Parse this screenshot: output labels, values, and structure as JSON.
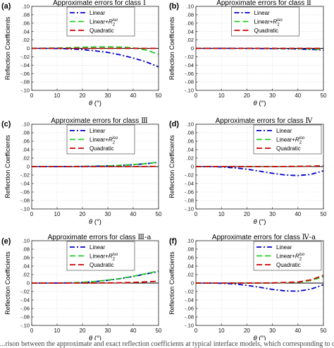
{
  "caption": "...rison between the approximate and exact reflection coefficients at typical interface models, which corresponding to different AVO cla...",
  "chart_data": [
    {
      "panel": "(a)",
      "type": "line",
      "title": "Approximate errors for class",
      "title_suffix": "Ⅰ",
      "xlabel": "θ (°)",
      "ylabel": "Reflection Coefficients",
      "xlim": [
        0,
        50
      ],
      "ylim": [
        -0.1,
        0.1
      ],
      "xticks": [
        0,
        10,
        20,
        30,
        40,
        50
      ],
      "yticks": [
        -0.1,
        -0.08,
        -0.06,
        -0.04,
        -0.02,
        0,
        0.02,
        0.04,
        0.06,
        0.08,
        0.1
      ],
      "grid": true,
      "legend_position": "top-center",
      "series": [
        {
          "name": "Linear",
          "color": "#0000cc",
          "dash": "7,3,2,3",
          "x": [
            0,
            5,
            10,
            15,
            20,
            25,
            30,
            35,
            40,
            45,
            50
          ],
          "y": [
            0,
            0,
            -0.0004,
            -0.0013,
            -0.003,
            -0.0058,
            -0.0098,
            -0.0155,
            -0.023,
            -0.032,
            -0.044
          ]
        },
        {
          "name": "Linear+R2iso",
          "color": "#22cc22",
          "dash": "8,4",
          "x": [
            0,
            5,
            10,
            15,
            20,
            25,
            30,
            35,
            40,
            45,
            50
          ],
          "y": [
            0,
            0.0003,
            0.0008,
            0.0015,
            0.0025,
            0.0033,
            0.0035,
            0.003,
            0.0012,
            -0.004,
            -0.014
          ]
        },
        {
          "name": "Quadratic",
          "color": "#cc0000",
          "dash": "8,4",
          "x": [
            0,
            5,
            10,
            15,
            20,
            25,
            30,
            35,
            40,
            45,
            50
          ],
          "y": [
            0,
            0,
            0,
            0,
            0,
            0,
            0,
            0,
            0,
            0,
            0
          ]
        }
      ]
    },
    {
      "panel": "(b)",
      "type": "line",
      "title": "Approximate errors for class",
      "title_suffix": "Ⅱ",
      "xlabel": "θ (°)",
      "ylabel": "Reflection Coefficients",
      "xlim": [
        0,
        50
      ],
      "ylim": [
        -0.1,
        0.1
      ],
      "xticks": [
        0,
        10,
        20,
        30,
        40,
        50
      ],
      "yticks": [
        -0.1,
        -0.08,
        -0.06,
        -0.04,
        -0.02,
        0,
        0.02,
        0.04,
        0.06,
        0.08,
        0.1
      ],
      "grid": true,
      "legend_position": "top-center",
      "series": [
        {
          "name": "Linear",
          "color": "#0000cc",
          "dash": "7,3,2,3",
          "x": [
            0,
            10,
            20,
            30,
            40,
            45,
            50
          ],
          "y": [
            0,
            0,
            -0.0002,
            -0.0006,
            -0.0015,
            -0.0025,
            -0.004
          ]
        },
        {
          "name": "Linear+R2iso",
          "color": "#22cc22",
          "dash": "8,4",
          "x": [
            0,
            10,
            20,
            30,
            40,
            45,
            50
          ],
          "y": [
            0,
            0,
            -0.0001,
            -0.0003,
            -0.0008,
            -0.0015,
            -0.0025
          ]
        },
        {
          "name": "Quadratic",
          "color": "#cc0000",
          "dash": "8,4",
          "x": [
            0,
            10,
            20,
            30,
            40,
            45,
            50
          ],
          "y": [
            0,
            0,
            0,
            0,
            0,
            0,
            0
          ]
        }
      ]
    },
    {
      "panel": "(c)",
      "type": "line",
      "title": "Approximate errors for class",
      "title_suffix": "Ⅲ",
      "xlabel": "θ (°)",
      "ylabel": "Reflection Coefficients",
      "xlim": [
        0,
        50
      ],
      "ylim": [
        -0.1,
        0.1
      ],
      "xticks": [
        0,
        10,
        20,
        30,
        40,
        50
      ],
      "yticks": [
        -0.1,
        -0.08,
        -0.06,
        -0.04,
        -0.02,
        0,
        0.02,
        0.04,
        0.06,
        0.08,
        0.1
      ],
      "grid": true,
      "legend_position": "top-center",
      "series": [
        {
          "name": "Linear",
          "color": "#0000cc",
          "dash": "7,3,2,3",
          "x": [
            0,
            10,
            20,
            30,
            35,
            40,
            45,
            50
          ],
          "y": [
            0,
            0,
            0.0003,
            0.0015,
            0.0028,
            0.0045,
            0.0068,
            0.01
          ]
        },
        {
          "name": "Linear+R2iso",
          "color": "#22cc22",
          "dash": "8,4",
          "x": [
            0,
            10,
            20,
            30,
            35,
            40,
            45,
            50
          ],
          "y": [
            0,
            0,
            0.0004,
            0.0017,
            0.003,
            0.0048,
            0.0072,
            0.0105
          ]
        },
        {
          "name": "Quadratic",
          "color": "#cc0000",
          "dash": "8,4",
          "x": [
            0,
            10,
            20,
            30,
            35,
            40,
            45,
            50
          ],
          "y": [
            0,
            0,
            0,
            0,
            0,
            0,
            0.0002,
            0.0005
          ]
        }
      ]
    },
    {
      "panel": "(d)",
      "type": "line",
      "title": "Approximate errors for class",
      "title_suffix": "Ⅳ",
      "xlabel": "θ (°)",
      "ylabel": "Reflection Coefficients",
      "xlim": [
        0,
        50
      ],
      "ylim": [
        -0.1,
        0.1
      ],
      "xticks": [
        0,
        10,
        20,
        30,
        40,
        50
      ],
      "yticks": [
        -0.1,
        -0.08,
        -0.06,
        -0.04,
        -0.02,
        0,
        0.02,
        0.04,
        0.06,
        0.08,
        0.1
      ],
      "grid": true,
      "legend_position": "top-right",
      "series": [
        {
          "name": "Linear",
          "color": "#0000cc",
          "dash": "7,3,2,3",
          "x": [
            0,
            5,
            10,
            15,
            20,
            25,
            30,
            35,
            40,
            45,
            50
          ],
          "y": [
            0,
            0,
            -0.0008,
            -0.0028,
            -0.0062,
            -0.0108,
            -0.0158,
            -0.0198,
            -0.0212,
            -0.0185,
            -0.01
          ]
        },
        {
          "name": "Linear+R2iso",
          "color": "#22cc22",
          "dash": "8,4",
          "x": [
            0,
            10,
            20,
            30,
            40,
            45,
            50
          ],
          "y": [
            0,
            0,
            0,
            0,
            0.0005,
            0.001,
            0.002
          ]
        },
        {
          "name": "Quadratic",
          "color": "#cc0000",
          "dash": "8,4",
          "x": [
            0,
            10,
            20,
            30,
            40,
            45,
            50
          ],
          "y": [
            0,
            0,
            0,
            0,
            0.0005,
            0.001,
            0.002
          ]
        }
      ]
    },
    {
      "panel": "(e)",
      "type": "line",
      "title": "Approximate errors for class",
      "title_suffix": "Ⅲ-a",
      "xlabel": "θ (°)",
      "ylabel": "Reflection Coefficients",
      "xlim": [
        0,
        50
      ],
      "ylim": [
        -0.1,
        0.1
      ],
      "xticks": [
        0,
        10,
        20,
        30,
        40,
        50
      ],
      "yticks": [
        -0.1,
        -0.08,
        -0.06,
        -0.04,
        -0.02,
        0,
        0.02,
        0.04,
        0.06,
        0.08,
        0.1
      ],
      "grid": true,
      "legend_position": "top-center",
      "series": [
        {
          "name": "Linear",
          "color": "#0000cc",
          "dash": "7,3,2,3",
          "x": [
            0,
            10,
            15,
            20,
            25,
            30,
            35,
            40,
            45,
            50
          ],
          "y": [
            0,
            0,
            0.0005,
            0.0015,
            0.0035,
            0.0065,
            0.0105,
            0.0155,
            0.0215,
            0.0275
          ]
        },
        {
          "name": "Linear+R2iso",
          "color": "#22cc22",
          "dash": "8,4",
          "x": [
            0,
            10,
            15,
            20,
            25,
            30,
            35,
            40,
            45,
            50
          ],
          "y": [
            0,
            0,
            0.0006,
            0.0017,
            0.0038,
            0.007,
            0.011,
            0.016,
            0.0222,
            0.0285
          ]
        },
        {
          "name": "Quadratic",
          "color": "#cc0000",
          "dash": "8,4",
          "x": [
            0,
            10,
            20,
            30,
            35,
            40,
            45,
            50
          ],
          "y": [
            0,
            0,
            0,
            0.0003,
            0.0007,
            0.0015,
            0.0028,
            0.0045
          ]
        }
      ]
    },
    {
      "panel": "(f)",
      "type": "line",
      "title": "Approximate errors for class",
      "title_suffix": "Ⅳ-a",
      "xlabel": "θ (°)",
      "ylabel": "Reflection Coefficients",
      "xlim": [
        0,
        50
      ],
      "ylim": [
        -0.1,
        0.1
      ],
      "xticks": [
        0,
        10,
        20,
        30,
        40,
        50
      ],
      "yticks": [
        -0.1,
        -0.08,
        -0.06,
        -0.04,
        -0.02,
        0,
        0.02,
        0.04,
        0.06,
        0.08,
        0.1
      ],
      "grid": true,
      "legend_position": "top-right",
      "series": [
        {
          "name": "Linear",
          "color": "#0000cc",
          "dash": "7,3,2,3",
          "x": [
            0,
            5,
            10,
            15,
            20,
            25,
            30,
            35,
            40,
            45,
            50
          ],
          "y": [
            0,
            0,
            -0.0005,
            -0.002,
            -0.0055,
            -0.01,
            -0.015,
            -0.0185,
            -0.019,
            -0.0145,
            -0.004
          ]
        },
        {
          "name": "Linear+R2iso",
          "color": "#22cc22",
          "dash": "8,4",
          "x": [
            0,
            10,
            20,
            30,
            40,
            45,
            50
          ],
          "y": [
            0,
            0,
            0,
            0.0002,
            0.002,
            0.006,
            0.015
          ]
        },
        {
          "name": "Quadratic",
          "color": "#cc0000",
          "dash": "8,4",
          "x": [
            0,
            10,
            20,
            30,
            40,
            45,
            50
          ],
          "y": [
            0,
            0,
            0,
            0.0003,
            0.0025,
            0.0075,
            0.018
          ]
        }
      ]
    }
  ]
}
